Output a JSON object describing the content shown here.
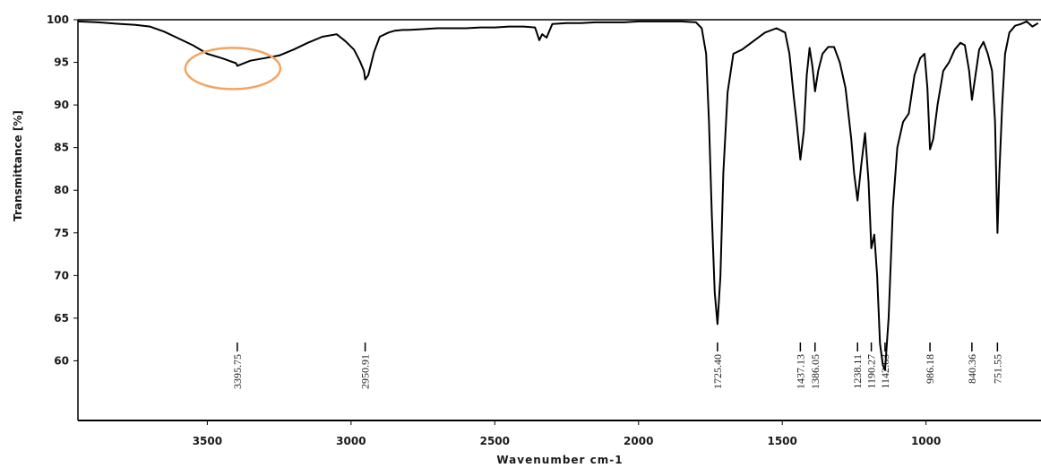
{
  "chart_data": {
    "type": "line",
    "title": "",
    "xlabel": "Wavenumber cm-1",
    "ylabel": "Transmittance [%]",
    "xlim": [
      3950,
      600
    ],
    "ylim": [
      53,
      100
    ],
    "x_reversed": true,
    "xticks": [
      3500,
      3000,
      2500,
      2000,
      1500,
      1000
    ],
    "yticks": [
      100,
      95,
      90,
      85,
      80,
      75,
      70,
      65,
      60
    ],
    "grid": false,
    "legend": "none",
    "line_color": "#000000",
    "series": [
      {
        "x": [
          3950,
          3880,
          3800,
          3750,
          3700,
          3650,
          3600,
          3550,
          3500,
          3450,
          3400,
          3395.75,
          3350,
          3300,
          3250,
          3200,
          3150,
          3100,
          3050,
          3020,
          2990,
          2970,
          2955,
          2950.91,
          2940,
          2920,
          2900,
          2870,
          2850,
          2820,
          2800,
          2750,
          2700,
          2650,
          2600,
          2550,
          2500,
          2450,
          2400,
          2360,
          2345,
          2335,
          2320,
          2300,
          2250,
          2200,
          2150,
          2100,
          2050,
          2000,
          1950,
          1900,
          1850,
          1800,
          1780,
          1765,
          1755,
          1745,
          1735,
          1725.4,
          1715,
          1705,
          1690,
          1670,
          1640,
          1600,
          1560,
          1520,
          1490,
          1475,
          1460,
          1450,
          1437.13,
          1425,
          1415,
          1405,
          1395,
          1386.05,
          1375,
          1360,
          1340,
          1320,
          1300,
          1280,
          1260,
          1250,
          1238.11,
          1225,
          1212,
          1200,
          1190.27,
          1180,
          1170,
          1160,
          1150,
          1142.63,
          1130,
          1115,
          1100,
          1080,
          1060,
          1040,
          1020,
          1005,
          995,
          986.18,
          975,
          960,
          940,
          920,
          900,
          880,
          865,
          850,
          840.36,
          830,
          815,
          800,
          785,
          770,
          760,
          751.55,
          745,
          735,
          725,
          710,
          690,
          670,
          650,
          630,
          610
        ],
        "y": [
          99.8,
          99.7,
          99.5,
          99.4,
          99.2,
          98.6,
          97.8,
          97.0,
          96.0,
          95.5,
          94.9,
          94.6,
          95.2,
          95.5,
          95.8,
          96.5,
          97.3,
          98.0,
          98.3,
          97.5,
          96.5,
          95.2,
          94.0,
          93.0,
          93.5,
          96.2,
          98.0,
          98.5,
          98.7,
          98.8,
          98.8,
          98.9,
          99.0,
          99.0,
          99.0,
          99.1,
          99.1,
          99.2,
          99.2,
          99.1,
          97.6,
          98.3,
          97.9,
          99.5,
          99.6,
          99.6,
          99.7,
          99.7,
          99.7,
          99.8,
          99.8,
          99.8,
          99.8,
          99.7,
          99.0,
          96.0,
          88.0,
          77.0,
          68.0,
          64.3,
          70.0,
          82.0,
          91.5,
          96.0,
          96.5,
          97.5,
          98.5,
          99.0,
          98.5,
          96.0,
          91.0,
          88.0,
          83.6,
          87.0,
          93.5,
          96.7,
          94.5,
          91.6,
          94.0,
          96.0,
          96.8,
          96.8,
          95.0,
          92.0,
          86.0,
          82.0,
          78.8,
          83.0,
          86.7,
          81.0,
          73.2,
          74.8,
          70.0,
          62.0,
          59.5,
          58.9,
          65.0,
          78.0,
          85.0,
          88.0,
          89.0,
          93.5,
          95.5,
          96.0,
          92.0,
          84.8,
          86.0,
          90.0,
          94.0,
          95.0,
          96.5,
          97.3,
          97.0,
          94.0,
          90.6,
          93.0,
          96.5,
          97.4,
          96.0,
          94.0,
          88.0,
          75.0,
          82.0,
          90.0,
          96.0,
          98.5,
          99.3,
          99.5,
          99.8,
          99.2,
          99.6
        ]
      }
    ],
    "peaks": [
      {
        "x": 3395.75,
        "label": "3395.75"
      },
      {
        "x": 2950.91,
        "label": "2950.91"
      },
      {
        "x": 1725.4,
        "label": "1725.40"
      },
      {
        "x": 1437.13,
        "label": "1437.13"
      },
      {
        "x": 1386.05,
        "label": "1386.05"
      },
      {
        "x": 1238.11,
        "label": "1238.11"
      },
      {
        "x": 1190.27,
        "label": "1190.27"
      },
      {
        "x": 1142.63,
        "label": "1142.63"
      },
      {
        "x": 986.18,
        "label": "986.18"
      },
      {
        "x": 840.36,
        "label": "840.36"
      },
      {
        "x": 751.55,
        "label": "751.55"
      }
    ],
    "annotations": [
      {
        "type": "ellipse",
        "center_x": 3395.75,
        "center_y": 94.6,
        "color": "#f4a460"
      }
    ]
  }
}
